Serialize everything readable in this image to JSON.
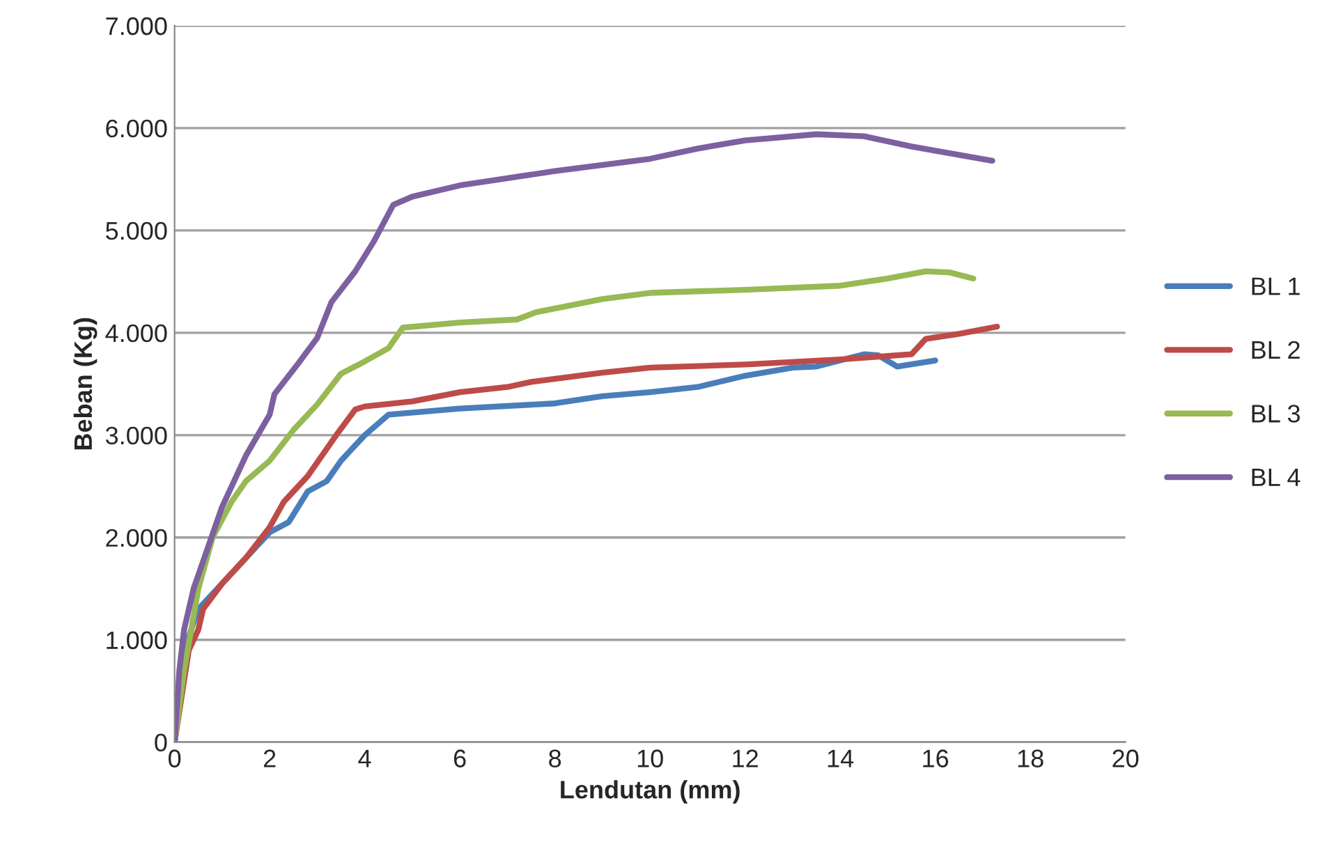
{
  "chart_data": {
    "type": "line",
    "xlabel": "Lendutan (mm)",
    "ylabel": "Beban (Kg)",
    "xlim": [
      0,
      20
    ],
    "xticks": [
      0,
      2,
      4,
      6,
      8,
      10,
      12,
      14,
      16,
      18,
      20
    ],
    "ylim": [
      0,
      7000
    ],
    "yticks": [
      {
        "value": 0,
        "label": "0"
      },
      {
        "value": 1000,
        "label": "1.000"
      },
      {
        "value": 2000,
        "label": "2.000"
      },
      {
        "value": 3000,
        "label": "3.000"
      },
      {
        "value": 4000,
        "label": "4.000"
      },
      {
        "value": 5000,
        "label": "5.000"
      },
      {
        "value": 6000,
        "label": "6.000"
      },
      {
        "value": 7000,
        "label": "7.000"
      }
    ],
    "grid": "y",
    "legend": "right",
    "marker": "none",
    "line_style": "solid",
    "series": [
      {
        "name": "BL 1",
        "color": "#4a7ebb",
        "x": [
          0,
          0.2,
          0.5,
          1,
          1.5,
          2,
          2.4,
          2.8,
          3.2,
          3.5,
          4,
          4.5,
          6,
          8,
          9,
          10,
          11,
          12,
          13,
          13.5,
          14.5,
          14.8,
          15.2,
          16
        ],
        "values": [
          0,
          900,
          1300,
          1550,
          1800,
          2050,
          2150,
          2450,
          2550,
          2750,
          3000,
          3200,
          3260,
          3310,
          3380,
          3420,
          3470,
          3580,
          3660,
          3670,
          3790,
          3780,
          3670,
          3730
        ]
      },
      {
        "name": "BL 2",
        "color": "#be4b48",
        "x": [
          0,
          0.3,
          0.5,
          0.6,
          1,
          1.5,
          2,
          2.3,
          2.8,
          3.4,
          3.8,
          4,
          5,
          6,
          7,
          7.5,
          9,
          10,
          12,
          14,
          15.5,
          15.8,
          16.5,
          17.3
        ],
        "values": [
          0,
          900,
          1100,
          1300,
          1550,
          1800,
          2100,
          2350,
          2600,
          3000,
          3250,
          3280,
          3330,
          3420,
          3470,
          3520,
          3610,
          3660,
          3690,
          3740,
          3790,
          3940,
          3990,
          4060
        ]
      },
      {
        "name": "BL 3",
        "color": "#98b954",
        "x": [
          0,
          0.2,
          0.5,
          0.8,
          1.2,
          1.5,
          2,
          2.5,
          3,
          3.5,
          4,
          4.5,
          4.8,
          6,
          7.2,
          7.6,
          9,
          10,
          12,
          14,
          15,
          15.8,
          16.3,
          16.8
        ],
        "values": [
          0,
          700,
          1500,
          2000,
          2350,
          2550,
          2750,
          3050,
          3300,
          3600,
          3720,
          3850,
          4050,
          4100,
          4130,
          4200,
          4330,
          4390,
          4420,
          4460,
          4530,
          4600,
          4590,
          4530
        ]
      },
      {
        "name": "BL 4",
        "color": "#7d60a0",
        "x": [
          0,
          0.1,
          0.2,
          0.4,
          0.7,
          1,
          1.5,
          2,
          2.1,
          2.6,
          3,
          3.3,
          3.8,
          4.2,
          4.6,
          5,
          6,
          8,
          10,
          11,
          12,
          13.5,
          14.5,
          15.5,
          17.2
        ],
        "values": [
          0,
          700,
          1100,
          1500,
          1900,
          2300,
          2800,
          3200,
          3400,
          3700,
          3950,
          4300,
          4600,
          4900,
          5250,
          5330,
          5440,
          5580,
          5700,
          5800,
          5880,
          5940,
          5920,
          5820,
          5680
        ]
      }
    ]
  }
}
